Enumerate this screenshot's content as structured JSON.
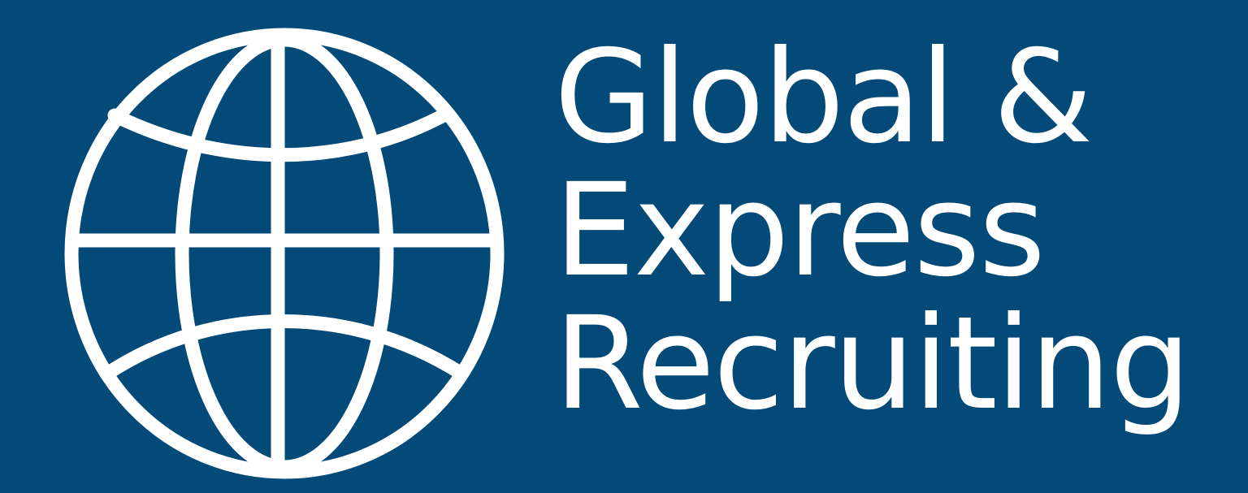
{
  "logo": {
    "icon": "globe-icon",
    "line1": "Global &",
    "line2": "Express",
    "line3": "Recruiting"
  },
  "colors": {
    "background": "#034a78",
    "foreground": "#ffffff"
  }
}
